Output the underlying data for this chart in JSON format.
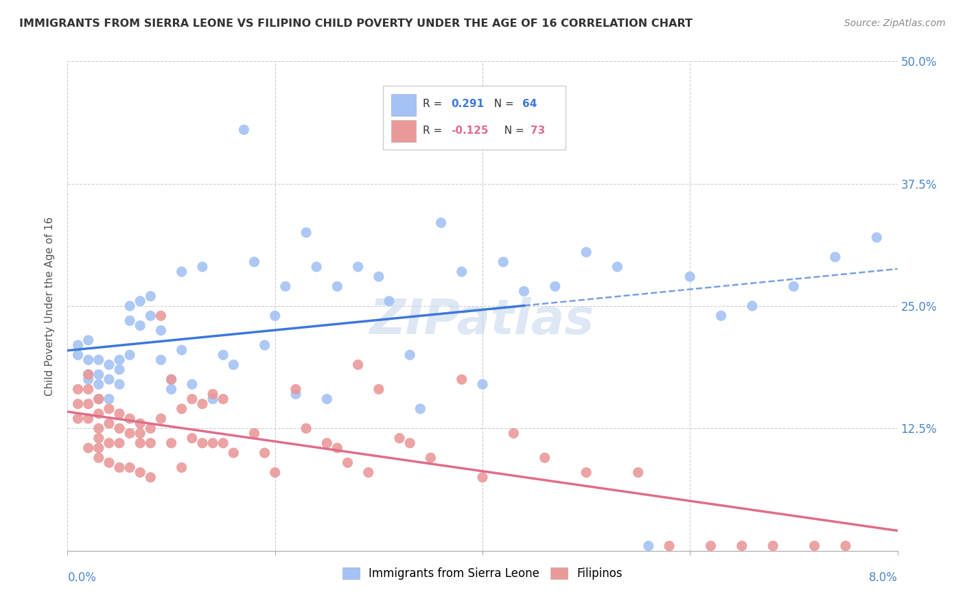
{
  "title": "IMMIGRANTS FROM SIERRA LEONE VS FILIPINO CHILD POVERTY UNDER THE AGE OF 16 CORRELATION CHART",
  "source": "Source: ZipAtlas.com",
  "ylabel": "Child Poverty Under the Age of 16",
  "xlim": [
    0.0,
    0.08
  ],
  "ylim": [
    0.0,
    0.5
  ],
  "yticks": [
    0.0,
    0.125,
    0.25,
    0.375,
    0.5
  ],
  "ytick_labels": [
    "",
    "12.5%",
    "25.0%",
    "37.5%",
    "50.0%"
  ],
  "watermark": "ZIPatlas",
  "blue_color": "#a4c2f4",
  "pink_color": "#ea9999",
  "blue_line_color": "#3c78d8",
  "pink_line_color": "#e06c8a",
  "blue_x": [
    0.001,
    0.001,
    0.002,
    0.002,
    0.002,
    0.002,
    0.003,
    0.003,
    0.003,
    0.003,
    0.004,
    0.004,
    0.004,
    0.005,
    0.005,
    0.005,
    0.006,
    0.006,
    0.006,
    0.007,
    0.007,
    0.008,
    0.008,
    0.009,
    0.009,
    0.01,
    0.01,
    0.011,
    0.011,
    0.012,
    0.013,
    0.014,
    0.015,
    0.016,
    0.017,
    0.018,
    0.019,
    0.02,
    0.021,
    0.022,
    0.023,
    0.024,
    0.025,
    0.026,
    0.028,
    0.03,
    0.031,
    0.033,
    0.034,
    0.036,
    0.038,
    0.04,
    0.042,
    0.044,
    0.047,
    0.05,
    0.053,
    0.056,
    0.06,
    0.063,
    0.066,
    0.07,
    0.074,
    0.078
  ],
  "blue_y": [
    0.21,
    0.2,
    0.215,
    0.195,
    0.18,
    0.175,
    0.195,
    0.18,
    0.17,
    0.155,
    0.19,
    0.175,
    0.155,
    0.195,
    0.185,
    0.17,
    0.25,
    0.235,
    0.2,
    0.255,
    0.23,
    0.26,
    0.24,
    0.225,
    0.195,
    0.175,
    0.165,
    0.285,
    0.205,
    0.17,
    0.29,
    0.155,
    0.2,
    0.19,
    0.43,
    0.295,
    0.21,
    0.24,
    0.27,
    0.16,
    0.325,
    0.29,
    0.155,
    0.27,
    0.29,
    0.28,
    0.255,
    0.2,
    0.145,
    0.335,
    0.285,
    0.17,
    0.295,
    0.265,
    0.27,
    0.305,
    0.29,
    0.005,
    0.28,
    0.24,
    0.25,
    0.27,
    0.3,
    0.32
  ],
  "pink_x": [
    0.001,
    0.001,
    0.001,
    0.002,
    0.002,
    0.002,
    0.002,
    0.002,
    0.003,
    0.003,
    0.003,
    0.003,
    0.003,
    0.003,
    0.004,
    0.004,
    0.004,
    0.004,
    0.005,
    0.005,
    0.005,
    0.005,
    0.006,
    0.006,
    0.006,
    0.007,
    0.007,
    0.007,
    0.007,
    0.008,
    0.008,
    0.008,
    0.009,
    0.009,
    0.01,
    0.01,
    0.011,
    0.011,
    0.012,
    0.012,
    0.013,
    0.013,
    0.014,
    0.014,
    0.015,
    0.015,
    0.016,
    0.018,
    0.019,
    0.02,
    0.022,
    0.023,
    0.025,
    0.026,
    0.027,
    0.028,
    0.029,
    0.03,
    0.032,
    0.033,
    0.035,
    0.038,
    0.04,
    0.043,
    0.046,
    0.05,
    0.055,
    0.058,
    0.062,
    0.065,
    0.068,
    0.072,
    0.075
  ],
  "pink_y": [
    0.165,
    0.15,
    0.135,
    0.18,
    0.165,
    0.15,
    0.135,
    0.105,
    0.155,
    0.14,
    0.125,
    0.115,
    0.105,
    0.095,
    0.145,
    0.13,
    0.11,
    0.09,
    0.14,
    0.125,
    0.11,
    0.085,
    0.135,
    0.12,
    0.085,
    0.13,
    0.12,
    0.11,
    0.08,
    0.125,
    0.11,
    0.075,
    0.24,
    0.135,
    0.175,
    0.11,
    0.145,
    0.085,
    0.155,
    0.115,
    0.15,
    0.11,
    0.16,
    0.11,
    0.155,
    0.11,
    0.1,
    0.12,
    0.1,
    0.08,
    0.165,
    0.125,
    0.11,
    0.105,
    0.09,
    0.19,
    0.08,
    0.165,
    0.115,
    0.11,
    0.095,
    0.175,
    0.075,
    0.12,
    0.095,
    0.08,
    0.08,
    0.005,
    0.005,
    0.005,
    0.005,
    0.005,
    0.005
  ]
}
